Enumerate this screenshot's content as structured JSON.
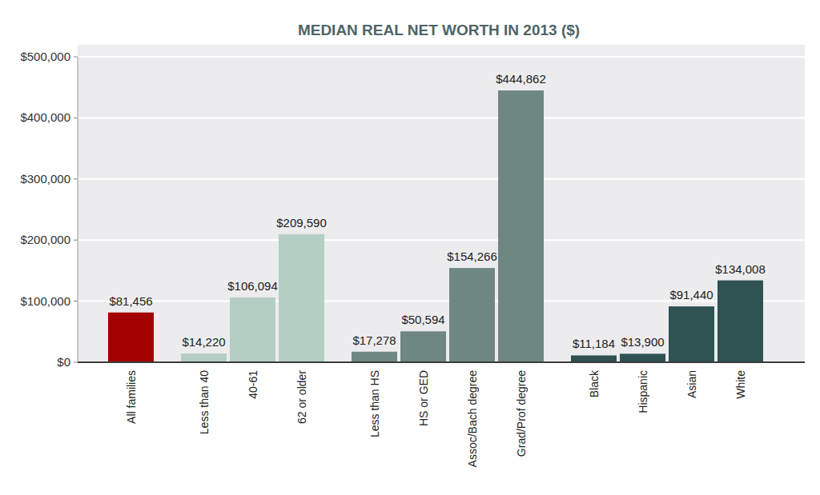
{
  "chart_data": {
    "type": "bar",
    "title": "MEDIAN REAL NET WORTH IN 2013 ($)",
    "categories": [
      "All families",
      "Less than 40",
      "40-61",
      "62 or older",
      "Less than HS",
      "HS or GED",
      "Assoc/Bach degree",
      "Grad/Prof degree",
      "Black",
      "Hispanic",
      "Asian",
      "White"
    ],
    "values": [
      81456,
      14220,
      106094,
      209590,
      17278,
      50594,
      154266,
      444862,
      11184,
      13900,
      91440,
      134008
    ],
    "value_labels": [
      "$81,456",
      "$14,220",
      "$106,094",
      "$209,590",
      "$17,278",
      "$50,594",
      "$154,266",
      "$444,862",
      "$11,184",
      "$13,900",
      "$91,440",
      "$134,008"
    ],
    "colors": [
      "#a30000",
      "#b4cec3",
      "#b4cec3",
      "#b4cec3",
      "#6f8783",
      "#6f8783",
      "#6f8783",
      "#6f8783",
      "#2f5253",
      "#2f5253",
      "#2f5253",
      "#2f5253"
    ],
    "ylim": [
      0,
      500000
    ],
    "yticks": [
      {
        "value": 0,
        "label": "$0"
      },
      {
        "value": 100000,
        "label": "$100,000"
      },
      {
        "value": 200000,
        "label": "$200,000"
      },
      {
        "value": 300000,
        "label": "$300,000"
      },
      {
        "value": 400000,
        "label": "$400,000"
      },
      {
        "value": 500000,
        "label": "$500,000"
      }
    ],
    "grid": true,
    "data_labels": true
  }
}
